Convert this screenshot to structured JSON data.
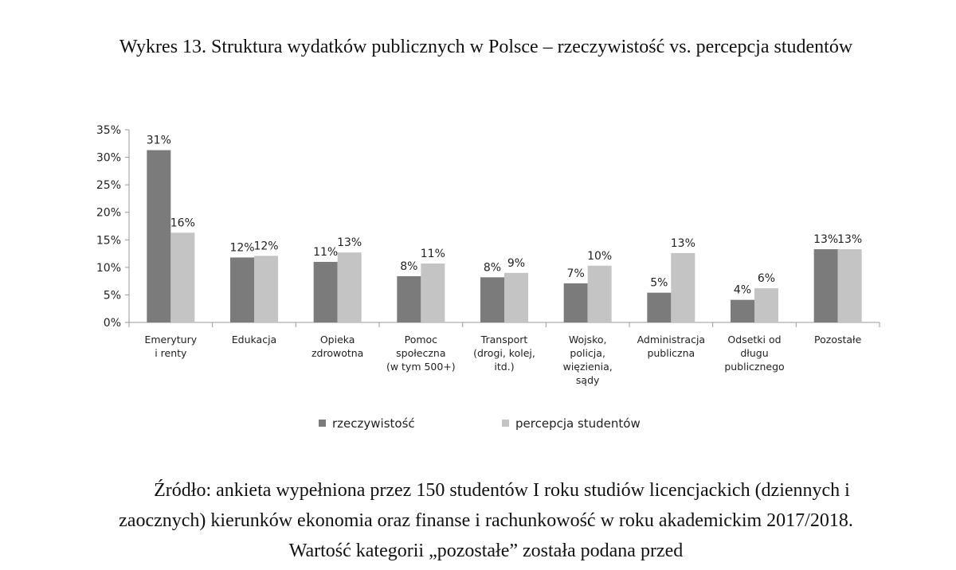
{
  "caption": "Wykres 13. Struktura wydatków publicznych w Polsce – rzeczywistość vs. percepcja studentów",
  "source": "Źródło: ankieta wypełniona przez 150 studentów I roku studiów licencjackich (dziennych i zaocznych) kierunków ekonomia oraz finanse i rachunkowość w roku akademickim 2017/2018. Wartość kategorii „pozostałe” została podana przed",
  "chart_data": {
    "type": "bar",
    "title": "",
    "xlabel": "",
    "ylabel": "",
    "ylim": [
      0,
      35
    ],
    "y_ticks": [
      "0%",
      "5%",
      "10%",
      "15%",
      "20%",
      "25%",
      "30%",
      "35%"
    ],
    "y_tick_values": [
      0,
      5,
      10,
      15,
      20,
      25,
      30,
      35
    ],
    "grid": false,
    "legend_position": "bottom",
    "categories": [
      [
        "Emerytury",
        "i renty"
      ],
      [
        "Edukacja"
      ],
      [
        "Opieka",
        "zdrowotna"
      ],
      [
        "Pomoc",
        "społeczna",
        "(w tym 500+)"
      ],
      [
        "Transport",
        "(drogi, kolej,",
        "itd.)"
      ],
      [
        "Wojsko,",
        "policja,",
        "więzienia,",
        "sądy"
      ],
      [
        "Administracja",
        "publiczna"
      ],
      [
        "Odsetki od",
        "długu",
        "publicznego"
      ],
      [
        "Pozostałe"
      ]
    ],
    "series": [
      {
        "name": "rzeczywistość",
        "color": "#7b7b7b",
        "values": [
          31.3,
          11.8,
          11.0,
          8.4,
          8.2,
          7.1,
          5.4,
          4.1,
          13.3
        ],
        "labels": [
          "31%",
          "12%",
          "11%",
          "8%",
          "8%",
          "7%",
          "5%",
          "4%",
          "13%"
        ]
      },
      {
        "name": "percepcja studentów",
        "color": "#c4c4c4",
        "values": [
          16.3,
          12.1,
          12.7,
          10.7,
          9.0,
          10.3,
          12.6,
          6.2,
          13.3
        ],
        "labels": [
          "16%",
          "12%",
          "13%",
          "11%",
          "9%",
          "10%",
          "13%",
          "6%",
          "13%"
        ]
      }
    ]
  }
}
